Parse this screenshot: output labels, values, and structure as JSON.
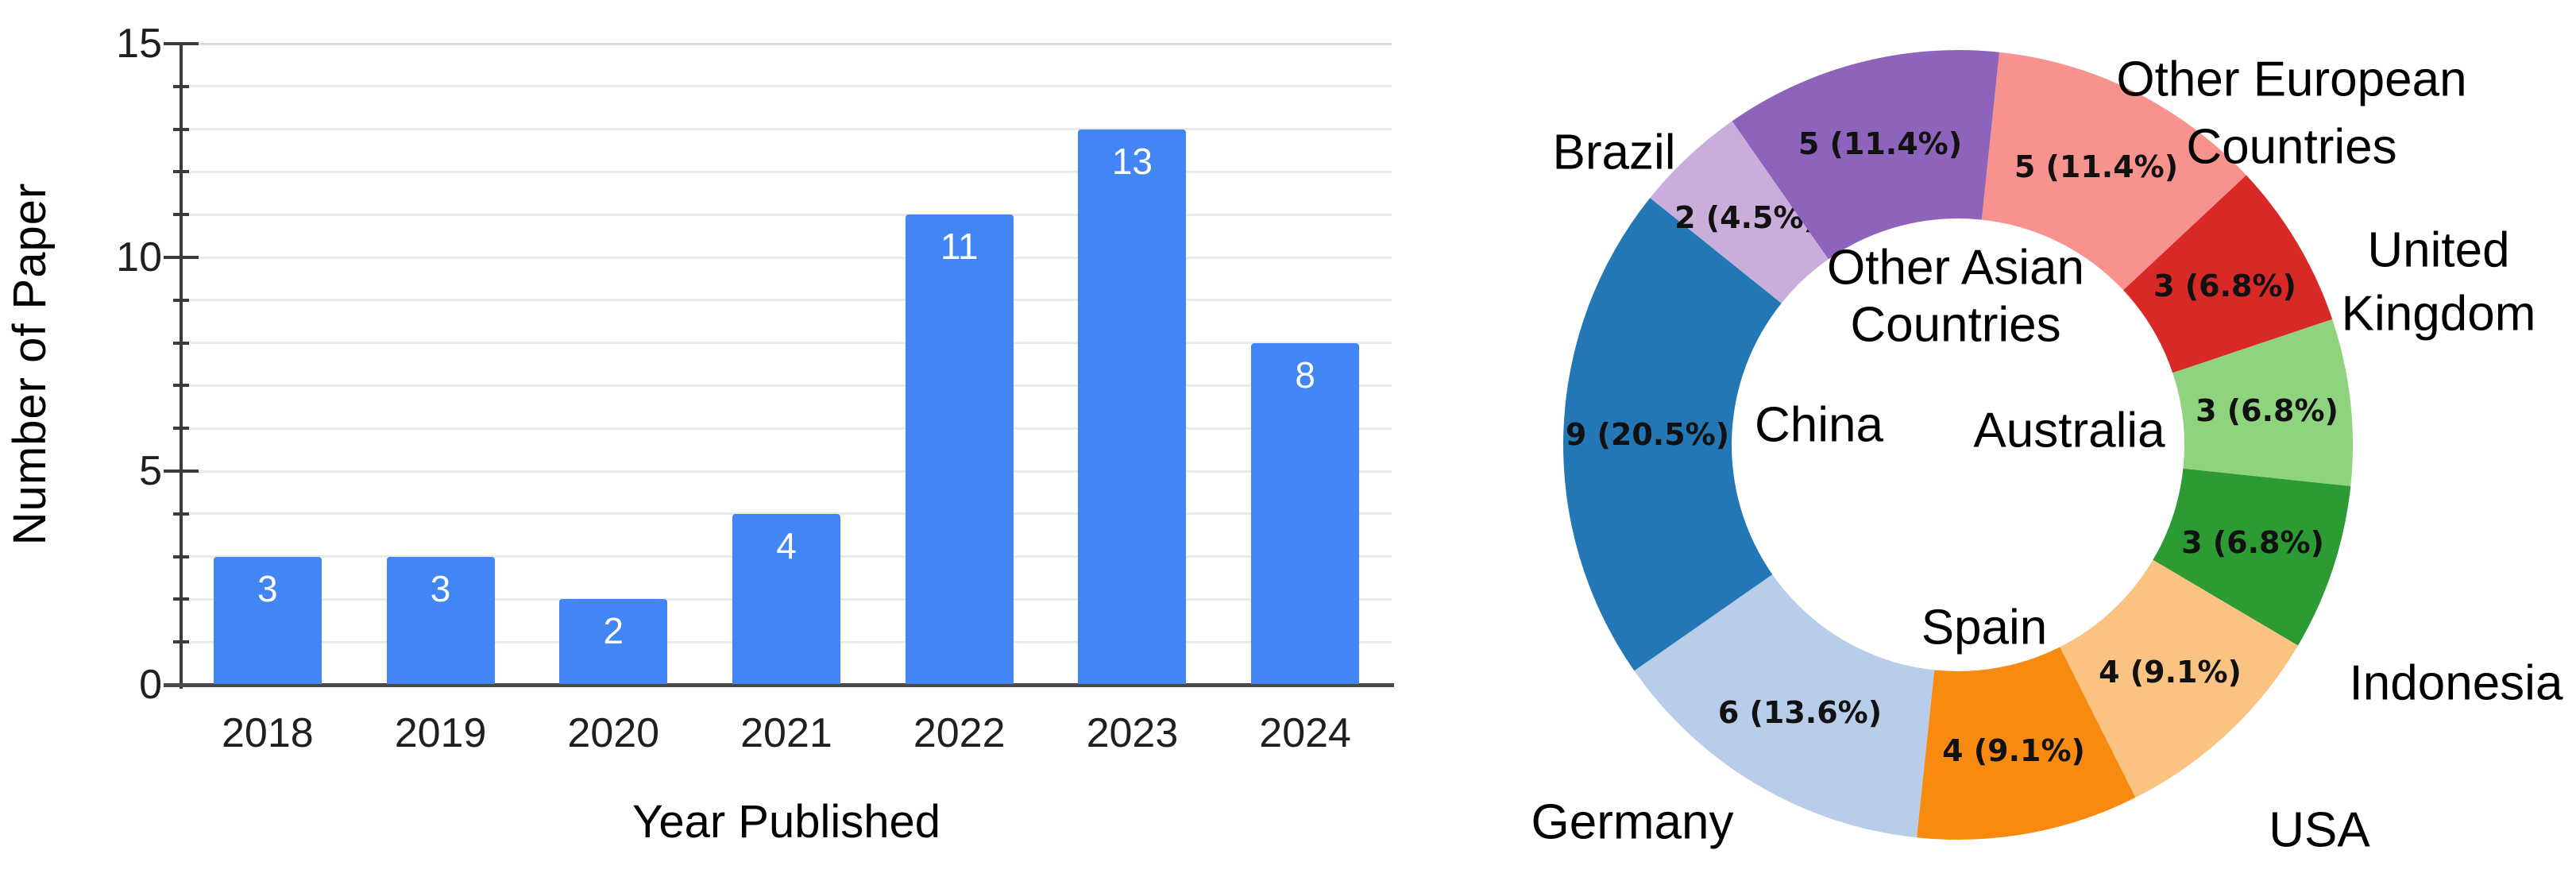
{
  "page": {
    "background": "#FFFFFF"
  },
  "chart_data": [
    {
      "type": "bar",
      "title": "",
      "xlabel": "Year Published",
      "ylabel": "Number of Paper",
      "categories": [
        "2018",
        "2019",
        "2020",
        "2021",
        "2022",
        "2023",
        "2024"
      ],
      "values": [
        3,
        3,
        2,
        4,
        11,
        13,
        8
      ],
      "bar_labels": [
        "3",
        "3",
        "2",
        "4",
        "11",
        "13",
        "8"
      ],
      "ylim": [
        0,
        15
      ],
      "ytick_labels": [
        "0",
        "5",
        "10",
        "15"
      ],
      "minor_tick_step": 1,
      "grid": "horizontal",
      "legend_position": "none",
      "colors": {
        "bar": "#4285F4",
        "bar_label": "#FFFFFF",
        "grid": "#EAEAEA",
        "grid_top": "#DCDCDC",
        "axis": "#4A4A4A",
        "tick": "#3B3B3B",
        "tick_label": "#1F1F1F",
        "axis_title": "#000000"
      }
    },
    {
      "type": "donut",
      "title": "",
      "start_angle_deg": 6,
      "direction": "clockwise",
      "total": 44,
      "inner_radius_ratio": 0.573,
      "legend_position": "labels-around",
      "value_label_color": "#111111",
      "label_color": "#000000",
      "slices": [
        {
          "label": "Other European Countries",
          "label_lines": [
            "Other European",
            "Countries"
          ],
          "value": 5,
          "pct": "11.4%",
          "value_label": "5 (11.4%)",
          "color": "#F8928E"
        },
        {
          "label": "United Kingdom",
          "label_lines": [
            "United",
            "Kingdom"
          ],
          "value": 3,
          "pct": "6.8%",
          "value_label": "3 (6.8%)",
          "color": "#D92926"
        },
        {
          "label": "Australia",
          "label_lines": [
            "Australia"
          ],
          "value": 3,
          "pct": "6.8%",
          "value_label": "3 (6.8%)",
          "color": "#8FD37F"
        },
        {
          "label": "Indonesia",
          "label_lines": [
            "Indonesia"
          ],
          "value": 3,
          "pct": "6.8%",
          "value_label": "3 (6.8%)",
          "color": "#2D9B33"
        },
        {
          "label": "USA",
          "label_lines": [
            "USA"
          ],
          "value": 4,
          "pct": "9.1%",
          "value_label": "4 (9.1%)",
          "color": "#FBC381"
        },
        {
          "label": "Spain",
          "label_lines": [
            "Spain"
          ],
          "value": 4,
          "pct": "9.1%",
          "value_label": "4 (9.1%)",
          "color": "#F88A10"
        },
        {
          "label": "Germany",
          "label_lines": [
            "Germany"
          ],
          "value": 6,
          "pct": "13.6%",
          "value_label": "6 (13.6%)",
          "color": "#B7CDE9"
        },
        {
          "label": "China",
          "label_lines": [
            "China"
          ],
          "value": 9,
          "pct": "20.5%",
          "value_label": "9 (20.5%)",
          "color": "#2277B4"
        },
        {
          "label": "Brazil",
          "label_lines": [
            "Brazil"
          ],
          "value": 2,
          "pct": "4.5%",
          "value_label": "2 (4.5%)",
          "color": "#C9AEDB"
        },
        {
          "label": "Other Asian Countries",
          "label_lines": [
            "Other Asian",
            "Countries"
          ],
          "value": 5,
          "pct": "11.4%",
          "value_label": "5 (11.4%)",
          "color": "#8D63BB"
        }
      ]
    }
  ]
}
